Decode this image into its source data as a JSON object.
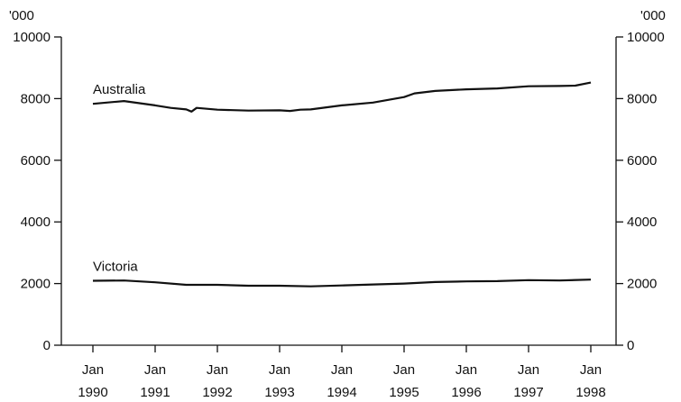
{
  "chart_data": {
    "type": "line",
    "title": "",
    "xlabel": "",
    "ylabel": "",
    "y_unit_left": "'000",
    "y_unit_right": "'000",
    "ylim": [
      0,
      10000
    ],
    "y_ticks": [
      0,
      2000,
      4000,
      6000,
      8000,
      10000
    ],
    "y_tick_labels": [
      "0",
      "2000",
      "4000",
      "6000",
      "8000",
      "10000"
    ],
    "x_ticks": [
      {
        "month": "Jan",
        "year": "1990",
        "date": "1990-01"
      },
      {
        "month": "Jan",
        "year": "1991",
        "date": "1991-01"
      },
      {
        "month": "Jan",
        "year": "1992",
        "date": "1992-01"
      },
      {
        "month": "Jan",
        "year": "1993",
        "date": "1993-01"
      },
      {
        "month": "Jan",
        "year": "1994",
        "date": "1994-01"
      },
      {
        "month": "Jan",
        "year": "1995",
        "date": "1995-01"
      },
      {
        "month": "Jan",
        "year": "1996",
        "date": "1996-01"
      },
      {
        "month": "Jan",
        "year": "1997",
        "date": "1997-01"
      },
      {
        "month": "Jan",
        "year": "1998",
        "date": "1998-01"
      }
    ],
    "grid": false,
    "legend": "none",
    "series": [
      {
        "name": "Australia",
        "x": [
          "1990-01",
          "1990-07",
          "1991-01",
          "1991-04",
          "1991-07",
          "1991-08",
          "1991-09",
          "1992-01",
          "1992-07",
          "1993-01",
          "1993-03",
          "1993-05",
          "1993-07",
          "1994-01",
          "1994-07",
          "1995-01",
          "1995-03",
          "1995-07",
          "1996-01",
          "1996-07",
          "1997-01",
          "1997-07",
          "1997-10",
          "1998-01"
        ],
        "values": [
          7830,
          7920,
          7780,
          7700,
          7650,
          7580,
          7700,
          7640,
          7610,
          7620,
          7600,
          7640,
          7650,
          7780,
          7870,
          8050,
          8170,
          8250,
          8300,
          8330,
          8400,
          8410,
          8420,
          8520
        ]
      },
      {
        "name": "Victoria",
        "x": [
          "1990-01",
          "1990-07",
          "1991-01",
          "1991-07",
          "1992-01",
          "1992-07",
          "1993-01",
          "1993-07",
          "1994-01",
          "1994-07",
          "1995-01",
          "1995-07",
          "1996-01",
          "1996-07",
          "1997-01",
          "1997-07",
          "1998-01"
        ],
        "values": [
          2090,
          2100,
          2040,
          1960,
          1960,
          1930,
          1930,
          1910,
          1940,
          1970,
          2000,
          2050,
          2070,
          2080,
          2110,
          2100,
          2130
        ]
      }
    ]
  }
}
